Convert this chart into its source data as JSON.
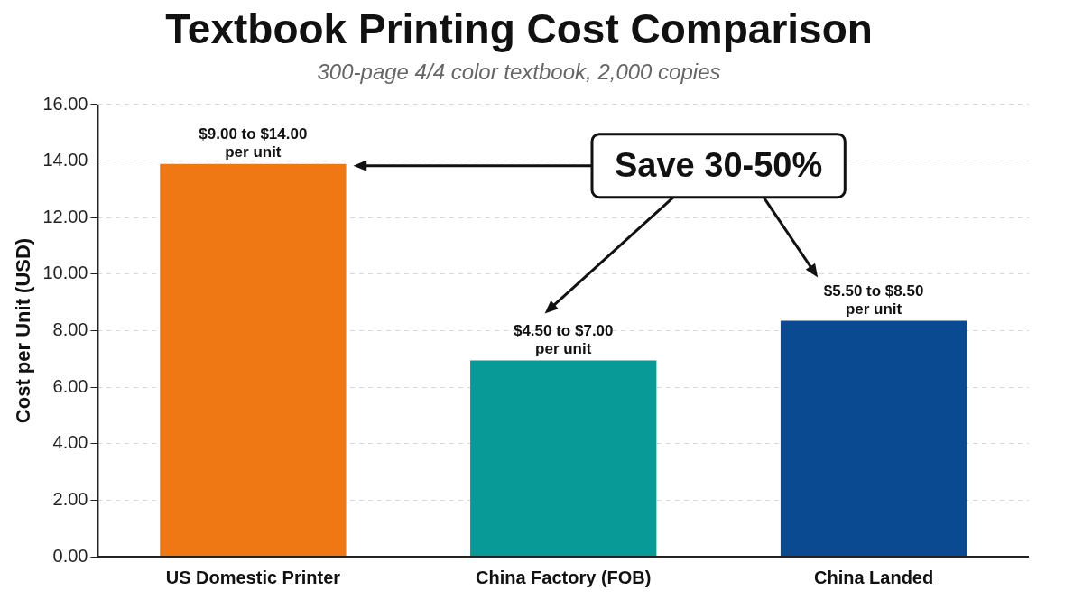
{
  "chart_data": {
    "type": "bar",
    "title": "Textbook Printing Cost Comparison",
    "subtitle": "300-page 4/4 color textbook, 2,000 copies",
    "ylabel": "Cost per Unit (USD)",
    "categories": [
      "US Domestic Printer",
      "China Factory (FOB)",
      "China Landed"
    ],
    "values": [
      13.9,
      6.95,
      8.35
    ],
    "colors": [
      "#f07814",
      "#089a96",
      "#0a4a90"
    ],
    "annotations": [
      {
        "text": "$9.00 to $14.00 per unit",
        "x": "US Domestic Printer",
        "y": 13.9
      },
      {
        "text": "$4.50 to $7.00 per unit",
        "x": "China Factory (FOB)",
        "y": 6.95
      },
      {
        "text": "$5.50 to $8.50 per unit",
        "x": "China Landed",
        "y": 8.35
      },
      "Save 30-50%"
    ],
    "ylim": [
      0,
      16
    ],
    "yticks": [
      {
        "value": 0,
        "label": "0.00"
      },
      {
        "value": 2,
        "label": "2.00"
      },
      {
        "value": 4,
        "label": "4.00"
      },
      {
        "value": 6,
        "label": "6.00"
      },
      {
        "value": 8,
        "label": "8.00"
      },
      {
        "value": 10,
        "label": "10.00"
      },
      {
        "value": 12,
        "label": "12.00"
      },
      {
        "value": 14,
        "label": "14.00"
      },
      {
        "value": 16,
        "label": "16.00"
      }
    ],
    "grid": "y",
    "legend": false
  }
}
